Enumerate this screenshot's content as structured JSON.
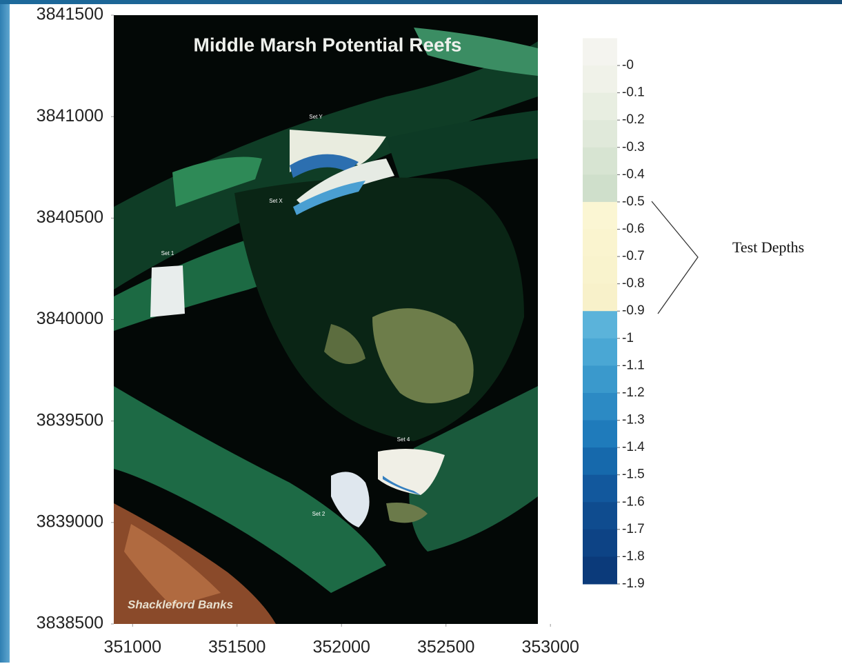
{
  "map": {
    "title": "Middle Marsh Potential Reefs",
    "xlim": [
      350910,
      352940
    ],
    "ylim": [
      3838500,
      3841500
    ],
    "xticks": [
      351000,
      351500,
      352000,
      352500,
      353000
    ],
    "yticks": [
      3838500,
      3839000,
      3839500,
      3840000,
      3840500,
      3841000,
      3841500
    ],
    "site_labels": [
      "Set Y",
      "Set X",
      "Set 1",
      "Set 4",
      "Set 2"
    ],
    "place_label": "Shackleford Banks"
  },
  "colorbar": {
    "ticks": [
      {
        "value": 0,
        "label": "-0"
      },
      -0.1,
      -0.2,
      -0.3,
      -0.4,
      -0.5,
      -0.6,
      -0.7,
      -0.8,
      -0.9,
      -1,
      -1.1,
      -1.2,
      -1.3,
      -1.4,
      -1.5,
      -1.6,
      -1.7,
      -1.8,
      -1.9
    ],
    "colors": [
      "#f4f4ef",
      "#f0f2e9",
      "#e8eee1",
      "#e0e9da",
      "#d7e4d2",
      "#cfdfcb",
      "#fbf6d3",
      "#faf4cf",
      "#f9f3cd",
      "#f8f1ca",
      "#5bb3da",
      "#4aa7d4",
      "#3a99cc",
      "#2c8ac4",
      "#1f7bbb",
      "#1669ac",
      "#12589d",
      "#0f4c8f",
      "#0d4385",
      "#0b3a7a"
    ]
  },
  "annotation": "Test Depths"
}
